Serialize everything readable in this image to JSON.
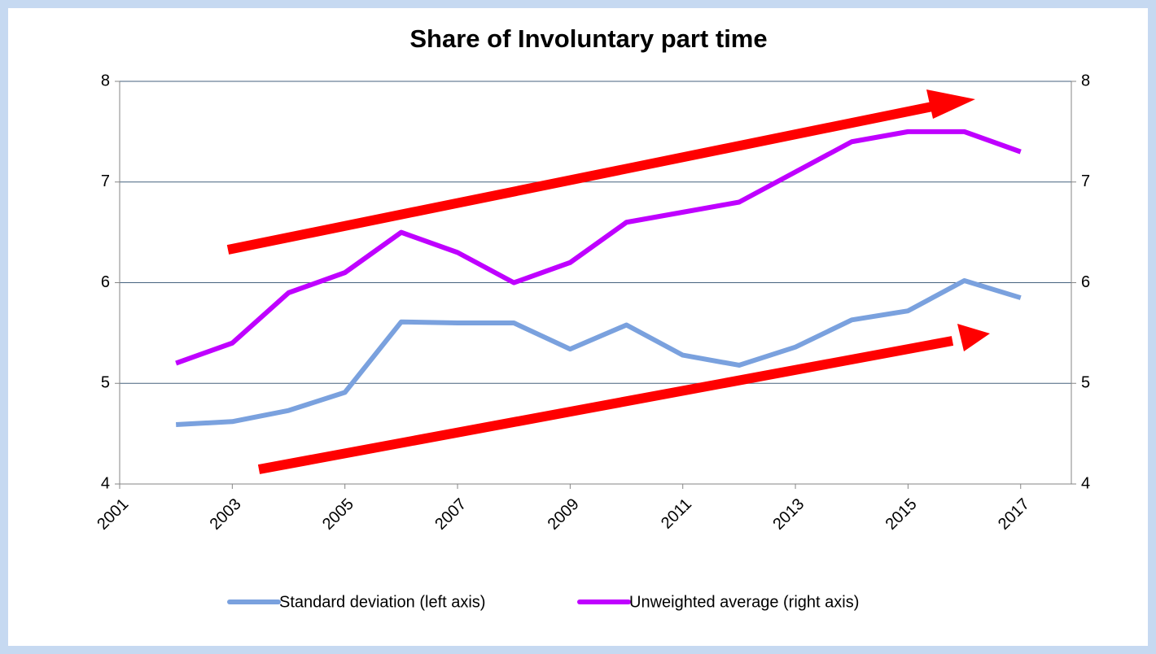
{
  "chart_data": {
    "type": "line",
    "title": "Share of Involuntary part time",
    "x": [
      2002,
      2003,
      2004,
      2005,
      2006,
      2007,
      2008,
      2009,
      2010,
      2011,
      2012,
      2013,
      2014,
      2015,
      2016,
      2017
    ],
    "series": [
      {
        "name": "Standard deviation (left axis)",
        "color": "#7aa1de",
        "axis": "y",
        "values": [
          4.59,
          4.62,
          4.73,
          4.91,
          5.61,
          5.6,
          5.6,
          5.34,
          5.58,
          5.28,
          5.18,
          5.36,
          5.63,
          5.72,
          6.02,
          5.85
        ]
      },
      {
        "name": "Unweighted average (right axis)",
        "color": "#bf00ff",
        "axis": "y2",
        "values": [
          5.2,
          5.4,
          5.9,
          6.1,
          6.5,
          6.3,
          6.0,
          6.2,
          6.6,
          6.7,
          6.8,
          7.1,
          7.4,
          7.5,
          7.5,
          7.3
        ]
      }
    ],
    "xlim": [
      2001,
      2017.9
    ],
    "xticks": [
      2001,
      2003,
      2005,
      2007,
      2009,
      2011,
      2013,
      2015,
      2017
    ],
    "ylim": [
      4,
      8
    ],
    "yticks": [
      4,
      5,
      6,
      7,
      8
    ],
    "y2lim": [
      4,
      8
    ],
    "y2ticks": [
      4,
      5,
      6,
      7,
      8
    ],
    "grid": true,
    "legend": "bottom"
  }
}
